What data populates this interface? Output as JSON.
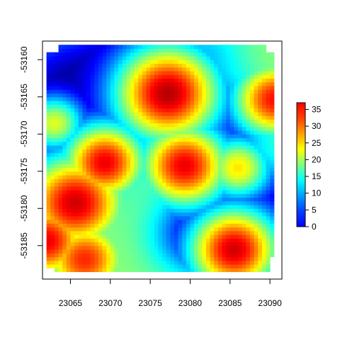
{
  "chart_data": {
    "type": "heatmap",
    "title": "",
    "xlabel": "",
    "ylabel": "",
    "xlim": [
      23061.5,
      23091.5
    ],
    "ylim": [
      -53189.5,
      -53157.5
    ],
    "x_ticks": [
      23065,
      23070,
      23075,
      23080,
      23085,
      23090
    ],
    "x_tick_labels": [
      "23065",
      "23070",
      "23075",
      "23080",
      "23085",
      "23090"
    ],
    "y_ticks": [
      -53160,
      -53165,
      -53170,
      -53175,
      -53180,
      -53185
    ],
    "y_tick_labels": [
      "-53160",
      "-53165",
      "-53170",
      "-53175",
      "-53180",
      "-53185"
    ],
    "data_extent": {
      "x": [
        23062.0,
        23090.5
      ],
      "y": [
        -53188.5,
        -53158.2
      ]
    },
    "color_scale": {
      "min": 0,
      "max": 37,
      "ticks": [
        0,
        5,
        10,
        15,
        20,
        25,
        30,
        35
      ],
      "tick_labels": [
        "0",
        "5",
        "10",
        "15",
        "20",
        "25",
        "30",
        "35"
      ],
      "palette": "jet (blue-cyan-green-yellow-red)"
    },
    "background_level": 19,
    "hotspots": [
      {
        "x": 23077.2,
        "y": -53164.5,
        "peak": 35,
        "radius": 5.0
      },
      {
        "x": 23069.3,
        "y": -53173.8,
        "peak": 33,
        "radius": 4.0
      },
      {
        "x": 23079.3,
        "y": -53174.2,
        "peak": 33,
        "radius": 4.3
      },
      {
        "x": 23065.6,
        "y": -53179.2,
        "peak": 34,
        "radius": 5.0
      },
      {
        "x": 23062.0,
        "y": -53184.3,
        "peak": 33,
        "radius": 4.2
      },
      {
        "x": 23066.8,
        "y": -53186.8,
        "peak": 31,
        "radius": 4.2
      },
      {
        "x": 23085.5,
        "y": -53185.5,
        "peak": 34,
        "radius": 4.3
      },
      {
        "x": 23090.6,
        "y": -53165.3,
        "peak": 32,
        "radius": 4.0
      },
      {
        "x": 23086.0,
        "y": -53174.5,
        "peak": 24,
        "radius": 3.2
      },
      {
        "x": 23063.0,
        "y": -53168.5,
        "peak": 22,
        "radius": 2.8
      }
    ],
    "low_zones": [
      {
        "x": 23065.5,
        "y": -53164.5,
        "depth": 19,
        "radius": 7.0
      },
      {
        "x": 23088.5,
        "y": -53180.5,
        "depth": 18,
        "radius": 4.5
      },
      {
        "x": 23084.5,
        "y": -53168.0,
        "depth": 12,
        "radius": 3.5
      },
      {
        "x": 23080.8,
        "y": -53183.5,
        "depth": 14,
        "radius": 3.8
      },
      {
        "x": 23063.0,
        "y": -53175.3,
        "depth": 16,
        "radius": 2.8
      },
      {
        "x": 23072.0,
        "y": -53159.5,
        "depth": 8,
        "radius": 3.0
      },
      {
        "x": 23082.0,
        "y": -53159.0,
        "depth": 6,
        "radius": 3.5
      }
    ]
  }
}
